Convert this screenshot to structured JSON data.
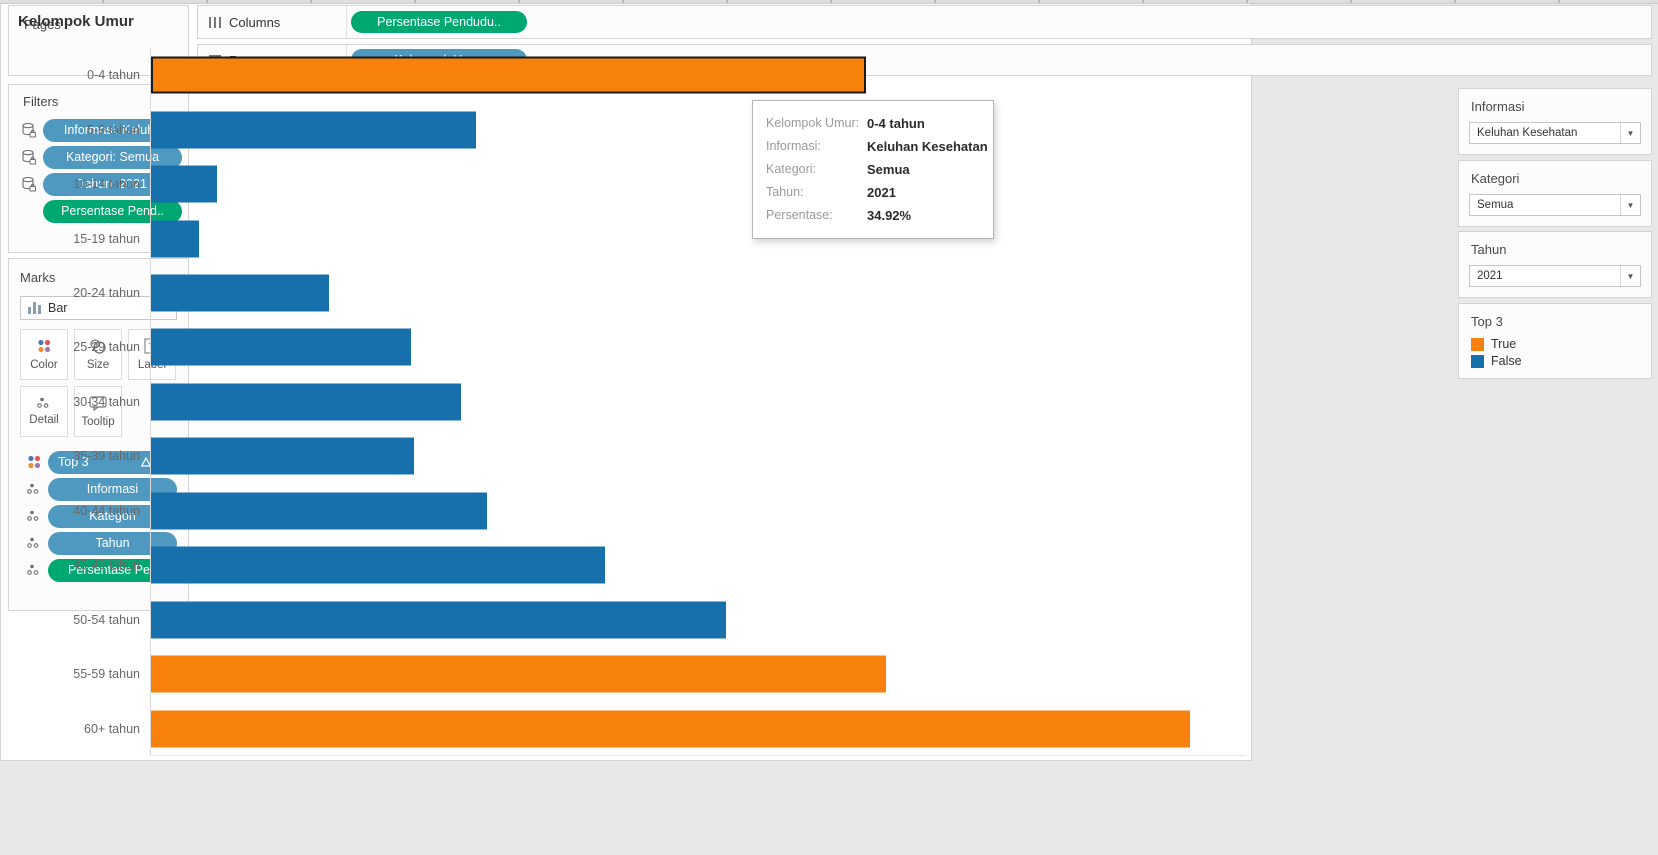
{
  "colors": {
    "bar_true": "#f8810e",
    "bar_false": "#1770ab",
    "pill_blue": "#4f98c0",
    "pill_green": "#00a871"
  },
  "pages": {
    "title": "Pages"
  },
  "filters": {
    "title": "Filters",
    "pills": [
      {
        "label": "Informasi: Keluh..",
        "color": "blue",
        "icon": "datasource-filter"
      },
      {
        "label": "Kategori: Semua",
        "color": "blue",
        "icon": "datasource-filter"
      },
      {
        "label": "Tahun: 2021",
        "color": "blue",
        "icon": "datasource-filter"
      },
      {
        "label": "Persentase Pend..",
        "color": "green",
        "icon": null
      }
    ]
  },
  "marks": {
    "title": "Marks",
    "mark_type": "Bar",
    "buttons": [
      {
        "label": "Color",
        "icon": "color-icon"
      },
      {
        "label": "Size",
        "icon": "size-icon"
      },
      {
        "label": "Label",
        "icon": "label-icon"
      },
      {
        "label": "Detail",
        "icon": "detail-icon"
      },
      {
        "label": "Tooltip",
        "icon": "tooltip-icon"
      }
    ],
    "pills": [
      {
        "label": "Top 3",
        "color": "blue",
        "left_icon": "color-icon",
        "right_icons": [
          "delta-icon",
          "sort-icon"
        ]
      },
      {
        "label": "Informasi",
        "color": "blue",
        "left_icon": "detail-icon",
        "right_icons": []
      },
      {
        "label": "Kategori",
        "color": "blue",
        "left_icon": "detail-icon",
        "right_icons": []
      },
      {
        "label": "Tahun",
        "color": "blue",
        "left_icon": "detail-icon",
        "right_icons": []
      },
      {
        "label": "Persentase Pe..",
        "color": "green",
        "left_icon": "detail-icon",
        "right_icons": []
      }
    ]
  },
  "shelves": {
    "columns_label": "Columns",
    "columns_pill": "Persentase Pendudu..",
    "columns_pill_color": "green",
    "rows_label": "Rows",
    "rows_pill": "Kelompok Umur",
    "rows_pill_color": "blue"
  },
  "chart_data": {
    "type": "bar",
    "orientation": "horizontal",
    "title": "Kelompok Umur",
    "xlabel": "Persentase",
    "ylabel": "Kelompok Umur",
    "xlim": [
      0,
      53.5
    ],
    "axis_hidden": true,
    "grid": false,
    "categories": [
      "0-4 tahun",
      "5-9 tahun",
      "10-14 tahun",
      "15-19 tahun",
      "20-24 tahun",
      "25-29 tahun",
      "30-34 tahun",
      "35-39 tahun",
      "40-44 tahun",
      "45-49 tahun",
      "50-54 tahun",
      "55-59 tahun",
      "60+ tahun"
    ],
    "series": [
      {
        "name": "Persentase Penduduk",
        "values": [
          34.92,
          15.87,
          3.22,
          2.34,
          8.69,
          12.7,
          15.14,
          12.84,
          16.41,
          22.17,
          28.08,
          35.89,
          50.74
        ]
      }
    ],
    "top3": [
      true,
      false,
      false,
      false,
      false,
      false,
      false,
      false,
      false,
      false,
      false,
      true,
      true
    ],
    "selected_category": "0-4 tahun",
    "legend_position": "right"
  },
  "tooltip": {
    "rows": [
      {
        "label": "Kelompok Umur:",
        "value": "0-4 tahun"
      },
      {
        "label": "Informasi:",
        "value": "Keluhan Kesehatan"
      },
      {
        "label": "Kategori:",
        "value": "Semua"
      },
      {
        "label": "Tahun:",
        "value": "2021"
      },
      {
        "label": "Persentase:",
        "value": "34.92%"
      }
    ]
  },
  "right_panel": {
    "combo_cards": [
      {
        "title": "Informasi",
        "value": "Keluhan Kesehatan"
      },
      {
        "title": "Kategori",
        "value": "Semua"
      },
      {
        "title": "Tahun",
        "value": "2021"
      }
    ],
    "legend": {
      "title": "Top 3",
      "items": [
        {
          "label": "True",
          "color": "#f8810e"
        },
        {
          "label": "False",
          "color": "#1770ab"
        }
      ]
    }
  }
}
